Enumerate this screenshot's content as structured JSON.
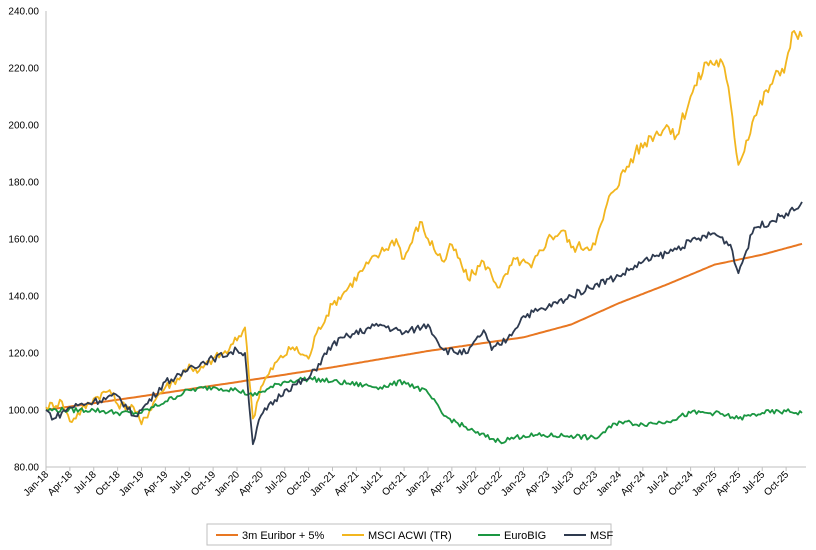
{
  "chart_data": {
    "type": "line",
    "title": "",
    "xlabel": "",
    "ylabel": "",
    "ylim": [
      80,
      240
    ],
    "yticks": [
      "80.00",
      "100.00",
      "120.00",
      "140.00",
      "160.00",
      "180.00",
      "200.00",
      "220.00",
      "240.00"
    ],
    "xticks": [
      "Jan-18",
      "Apr-18",
      "Jul-18",
      "Oct-18",
      "Jan-19",
      "Apr-19",
      "Jul-19",
      "Oct-19",
      "Jan-20",
      "Apr-20",
      "Jul-20",
      "Oct-20",
      "Jan-21",
      "Apr-21",
      "Jul-21",
      "Oct-21",
      "Jan-22",
      "Apr-22",
      "Jul-22",
      "Oct-22",
      "Jan-23",
      "Apr-23",
      "Jul-23",
      "Oct-23",
      "Jan-24",
      "Apr-24",
      "Jul-24",
      "Oct-24",
      "Jan-25",
      "Apr-25",
      "Jul-25",
      "Oct-25"
    ],
    "grid": false,
    "legend_position": "bottom",
    "series": [
      {
        "name": "3m Euribor + 5%",
        "color": "#E87722",
        "x": [
          "Jan-18",
          "Jan-19",
          "Jan-20",
          "Jan-21",
          "Jan-22",
          "Jan-23",
          "Jul-23",
          "Jan-24",
          "Jul-24",
          "Jan-25",
          "Jul-25",
          "Dec-25"
        ],
        "values": [
          100,
          104.8,
          109.8,
          115,
          120.7,
          125.5,
          130,
          137.5,
          144,
          151,
          154.5,
          158.3
        ]
      },
      {
        "name": "MSCI ACWI (TR)",
        "color": "#F2B61F",
        "x": [
          "Jan-18",
          "Mar-18",
          "Apr-18",
          "Jul-18",
          "Sep-18",
          "Oct-18",
          "Dec-18",
          "Jan-19",
          "Mar-19",
          "Apr-19",
          "Jun-19",
          "Jul-19",
          "Aug-19",
          "Oct-19",
          "Dec-19",
          "Feb-20",
          "Mar-20",
          "Apr-20",
          "Jun-20",
          "Aug-20",
          "Oct-20",
          "Nov-20",
          "Jan-21",
          "Mar-21",
          "May-21",
          "Jul-21",
          "Sep-21",
          "Oct-21",
          "Dec-21",
          "Jan-22",
          "Mar-22",
          "Apr-22",
          "Jun-22",
          "Aug-22",
          "Oct-22",
          "Dec-22",
          "Feb-23",
          "Apr-23",
          "Jun-23",
          "Jul-23",
          "Oct-23",
          "Dec-23",
          "Mar-24",
          "May-24",
          "Jul-24",
          "Aug-24",
          "Oct-24",
          "Dec-24",
          "Feb-25",
          "Mar-25",
          "Apr-25",
          "Jun-25",
          "Aug-25",
          "Oct-25",
          "Nov-25",
          "Dec-25"
        ],
        "values": [
          101,
          103,
          96,
          104,
          107,
          102,
          101,
          95,
          105,
          108,
          112,
          116,
          113,
          118,
          121,
          129,
          97,
          108,
          117,
          122,
          118,
          127,
          137,
          143,
          150,
          155,
          160,
          153,
          166,
          160,
          152,
          158,
          146,
          152,
          143,
          153,
          150,
          160,
          163,
          157,
          158,
          176,
          190,
          196,
          200,
          195,
          210,
          222,
          222,
          208,
          186,
          203,
          214,
          222,
          233,
          231
        ]
      },
      {
        "name": "EuroBIG",
        "color": "#1A9641",
        "x": [
          "Jan-18",
          "Jul-18",
          "Oct-18",
          "Jan-19",
          "Apr-19",
          "Jul-19",
          "Oct-19",
          "Jan-20",
          "Mar-20",
          "Jul-20",
          "Oct-20",
          "Jan-21",
          "Jul-21",
          "Oct-21",
          "Jan-22",
          "Mar-22",
          "Jul-22",
          "Oct-22",
          "Jan-23",
          "Jul-23",
          "Oct-23",
          "Jan-24",
          "Apr-24",
          "Jul-24",
          "Oct-24",
          "Jan-25",
          "Apr-25",
          "Jul-25",
          "Oct-25",
          "Dec-25"
        ],
        "values": [
          100,
          100,
          99,
          99,
          103,
          107,
          108,
          107,
          105,
          110,
          111,
          110,
          108,
          110,
          106,
          98,
          92,
          89,
          91,
          91,
          90,
          96,
          95,
          96,
          99,
          99,
          97,
          99,
          99.5,
          99
        ]
      },
      {
        "name": "MSF",
        "color": "#2E3A4F",
        "x": [
          "Jan-18",
          "Feb-18",
          "Apr-18",
          "Jul-18",
          "Oct-18",
          "Dec-18",
          "Jan-19",
          "Apr-19",
          "Jun-19",
          "Jul-19",
          "Oct-19",
          "Jan-20",
          "Feb-20",
          "Mar-20",
          "Apr-20",
          "Jul-20",
          "Oct-20",
          "Jan-21",
          "Mar-21",
          "Jul-21",
          "Oct-21",
          "Jan-22",
          "Mar-22",
          "Jun-22",
          "Aug-22",
          "Sep-22",
          "Nov-22",
          "Jan-23",
          "Apr-23",
          "Jul-23",
          "Oct-23",
          "Jan-24",
          "Apr-24",
          "Jul-24",
          "Oct-24",
          "Jan-25",
          "Mar-25",
          "Apr-25",
          "Jun-25",
          "Aug-25",
          "Oct-25",
          "Nov-25",
          "Dec-25"
        ],
        "values": [
          100,
          97,
          101,
          103,
          105,
          98,
          100,
          110,
          112,
          115,
          118,
          121,
          120,
          88,
          98,
          107,
          111,
          123,
          126,
          130,
          127,
          130,
          121,
          120,
          128,
          121,
          125,
          133,
          136,
          140,
          144,
          147,
          152,
          155,
          159,
          162,
          158,
          148,
          164,
          166,
          169,
          170,
          173
        ]
      }
    ]
  }
}
